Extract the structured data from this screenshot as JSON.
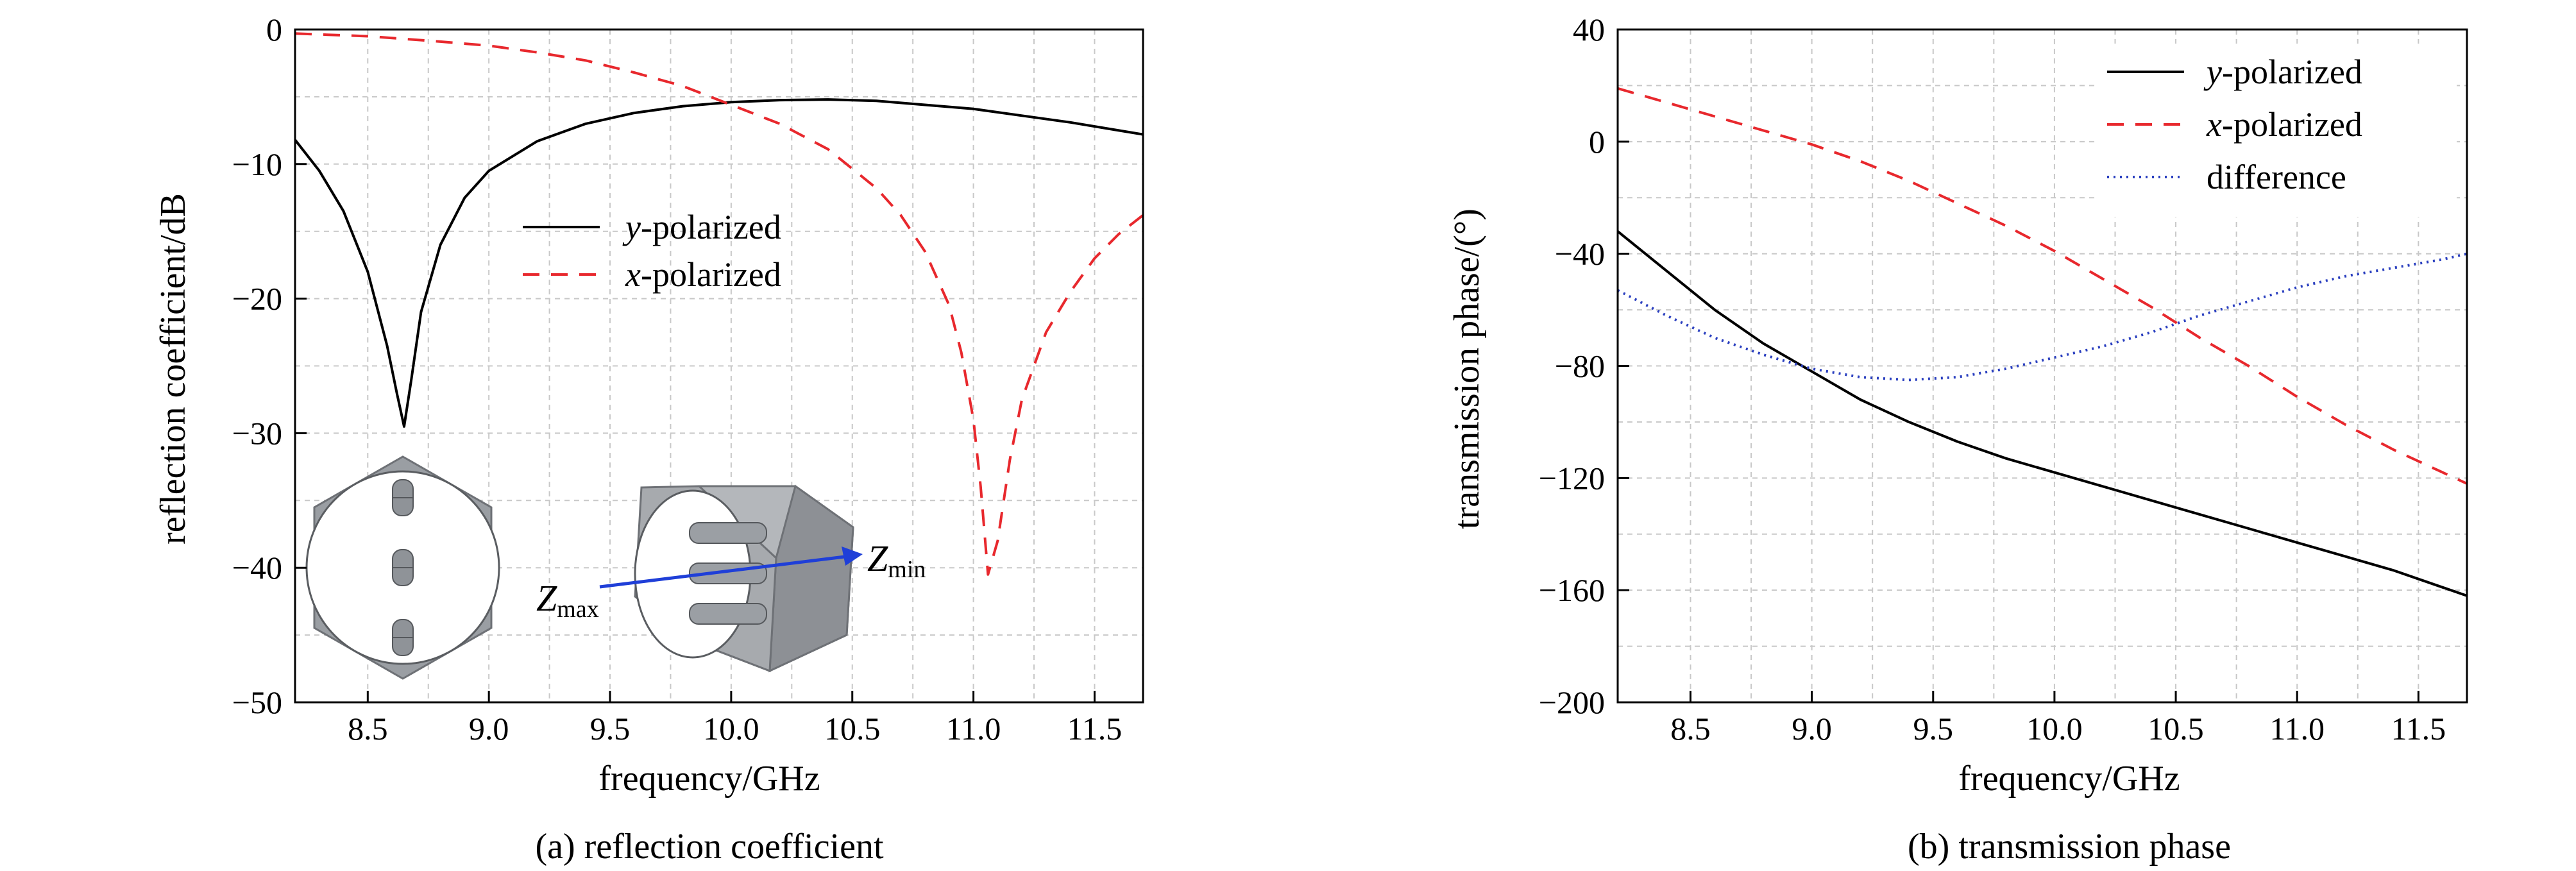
{
  "chart_data": [
    {
      "type": "line",
      "panel": "a",
      "caption": "(a) reflection coefficient",
      "xlabel": "frequency/GHz",
      "ylabel": "reflection coefficient/dB",
      "xlim": [
        8.2,
        11.7
      ],
      "ylim": [
        -50,
        0
      ],
      "xticks": [
        8.5,
        9.0,
        9.5,
        10.0,
        10.5,
        11.0,
        11.5
      ],
      "xtick_labels": [
        "8.5",
        "9.0",
        "9.5",
        "10.0",
        "10.5",
        "11.0",
        "11.5"
      ],
      "yticks": [
        0,
        -10,
        -20,
        -30,
        -40,
        -50
      ],
      "ytick_labels": [
        "0",
        "−10",
        "−20",
        "−30",
        "−40",
        "−50"
      ],
      "legend_position": "middle-right",
      "series": [
        {
          "name_italic": "y",
          "name_rest": "-polarized",
          "color": "#000000",
          "style": "solid",
          "x": [
            8.2,
            8.3,
            8.4,
            8.5,
            8.58,
            8.62,
            8.65,
            8.68,
            8.72,
            8.8,
            8.9,
            9.0,
            9.2,
            9.4,
            9.6,
            9.8,
            10.0,
            10.2,
            10.4,
            10.6,
            10.8,
            11.0,
            11.2,
            11.4,
            11.6,
            11.7
          ],
          "y": [
            -8.2,
            -10.5,
            -13.5,
            -18.0,
            -23.5,
            -27.0,
            -29.5,
            -26.0,
            -21.0,
            -16.0,
            -12.5,
            -10.5,
            -8.3,
            -7.0,
            -6.2,
            -5.7,
            -5.4,
            -5.25,
            -5.2,
            -5.3,
            -5.6,
            -5.9,
            -6.4,
            -6.9,
            -7.5,
            -7.8
          ]
        },
        {
          "name_italic": "x",
          "name_rest": "-polarized",
          "color": "#e8282d",
          "style": "dashed",
          "x": [
            8.2,
            8.5,
            8.8,
            9.0,
            9.2,
            9.4,
            9.6,
            9.8,
            10.0,
            10.2,
            10.4,
            10.6,
            10.7,
            10.8,
            10.9,
            10.95,
            11.0,
            11.03,
            11.06,
            11.1,
            11.15,
            11.2,
            11.3,
            11.4,
            11.5,
            11.6,
            11.7
          ],
          "y": [
            -0.3,
            -0.5,
            -0.9,
            -1.2,
            -1.7,
            -2.3,
            -3.2,
            -4.2,
            -5.6,
            -7.0,
            -8.9,
            -11.8,
            -13.8,
            -16.5,
            -20.5,
            -24.0,
            -29.0,
            -34.0,
            -40.5,
            -38.0,
            -32.0,
            -27.5,
            -22.5,
            -19.5,
            -17.0,
            -15.2,
            -13.8
          ]
        }
      ],
      "inset": {
        "labels": {
          "zmax_main": "Z",
          "zmax_sub": "max",
          "zmin_main": "Z",
          "zmin_sub": "min"
        }
      }
    },
    {
      "type": "line",
      "panel": "b",
      "caption": "(b) transmission phase",
      "xlabel": "frequency/GHz",
      "ylabel": "transmission phase/(°)",
      "xlim": [
        8.2,
        11.7
      ],
      "ylim": [
        -200,
        40
      ],
      "xticks": [
        8.5,
        9.0,
        9.5,
        10.0,
        10.5,
        11.0,
        11.5
      ],
      "xtick_labels": [
        "8.5",
        "9.0",
        "9.5",
        "10.0",
        "10.5",
        "11.0",
        "11.5"
      ],
      "yticks": [
        40,
        0,
        -40,
        -80,
        -120,
        -160,
        -200
      ],
      "ytick_labels": [
        "40",
        "0",
        "−40",
        "−80",
        "−120",
        "−160",
        "−200"
      ],
      "legend_position": "top-right",
      "series": [
        {
          "name_italic": "y",
          "name_rest": "-polarized",
          "color": "#000000",
          "style": "solid",
          "x": [
            8.2,
            8.4,
            8.6,
            8.8,
            9.0,
            9.2,
            9.4,
            9.6,
            9.8,
            10.0,
            10.2,
            10.4,
            10.6,
            10.8,
            11.0,
            11.2,
            11.4,
            11.6,
            11.7
          ],
          "y": [
            -32,
            -46,
            -60,
            -72,
            -82,
            -92,
            -100,
            -107,
            -113,
            -118,
            -123,
            -128,
            -133,
            -138,
            -143,
            -148,
            -153,
            -159,
            -162
          ]
        },
        {
          "name_italic": "x",
          "name_rest": "-polarized",
          "color": "#e8282d",
          "style": "dashed",
          "x": [
            8.2,
            8.4,
            8.6,
            8.8,
            9.0,
            9.2,
            9.4,
            9.6,
            9.8,
            10.0,
            10.2,
            10.4,
            10.6,
            10.8,
            11.0,
            11.2,
            11.4,
            11.6,
            11.7
          ],
          "y": [
            19,
            14,
            9,
            4,
            -1,
            -7,
            -14,
            -22,
            -30,
            -39,
            -49,
            -59,
            -70,
            -80,
            -91,
            -101,
            -110,
            -118,
            -122
          ]
        },
        {
          "name_italic": "",
          "name_rest": "difference",
          "color": "#2a3fbf",
          "style": "dotted",
          "x": [
            8.2,
            8.4,
            8.6,
            8.8,
            9.0,
            9.2,
            9.4,
            9.6,
            9.8,
            10.0,
            10.2,
            10.4,
            10.6,
            10.8,
            11.0,
            11.2,
            11.4,
            11.6,
            11.7
          ],
          "y": [
            -53,
            -62,
            -70,
            -76,
            -81,
            -84,
            -85,
            -84,
            -81,
            -77,
            -73,
            -68,
            -62,
            -57,
            -52,
            -48,
            -45,
            -42,
            -40
          ]
        }
      ]
    }
  ]
}
